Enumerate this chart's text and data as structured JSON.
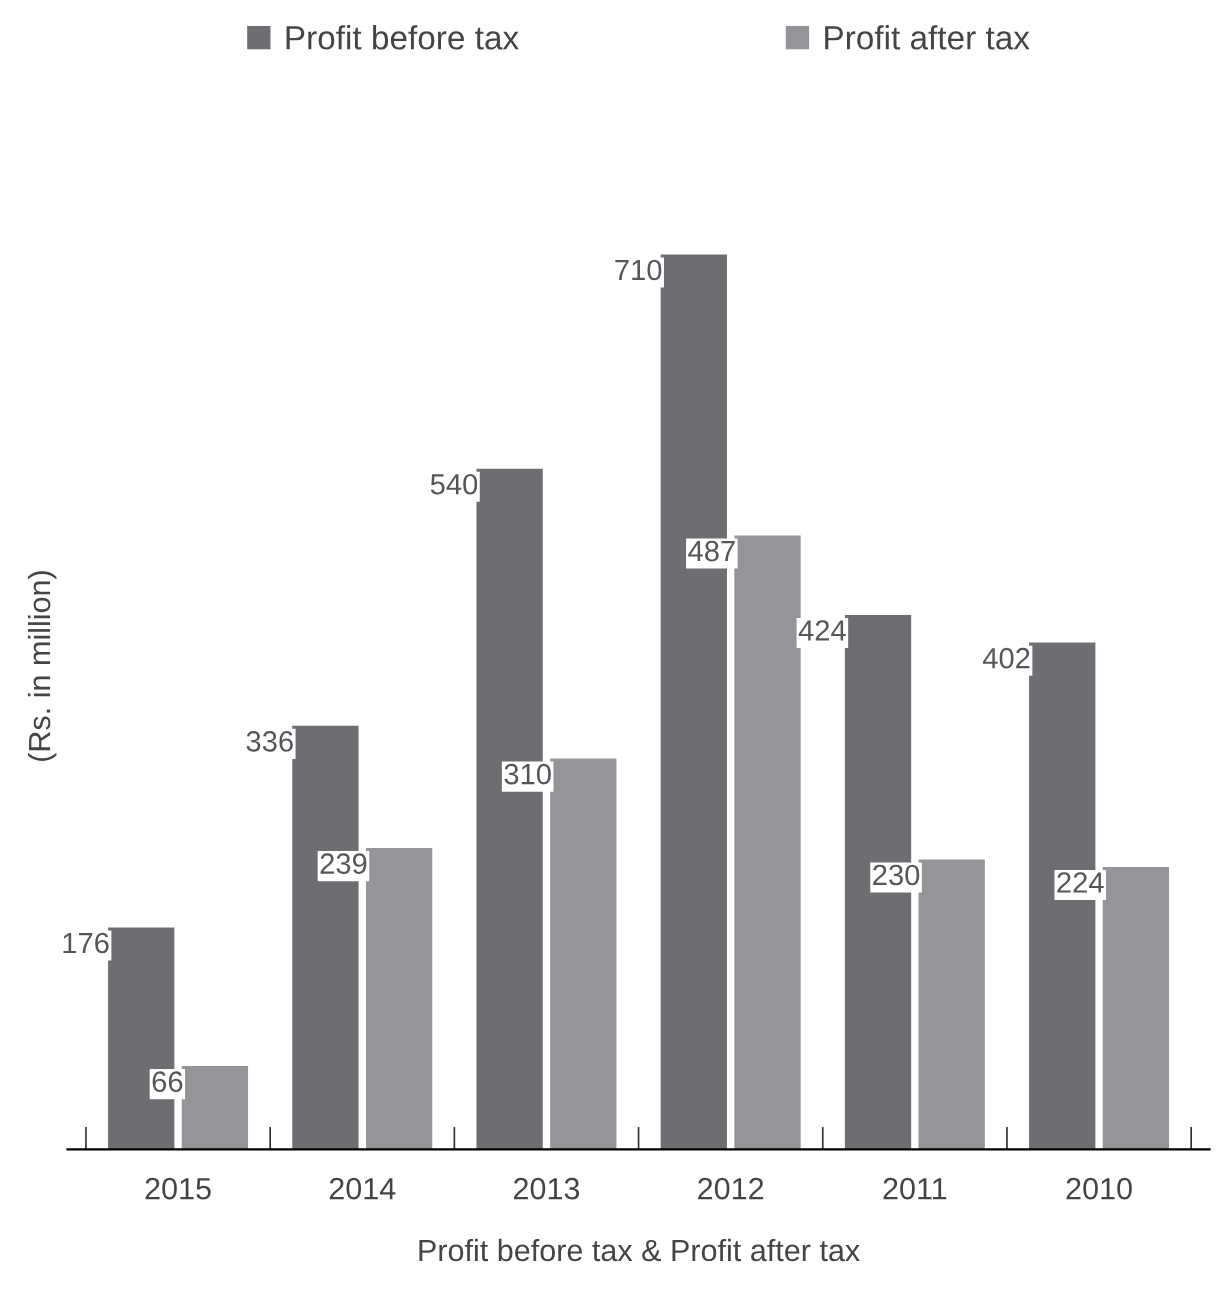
{
  "chart_data": {
    "type": "bar",
    "xlabel": "Profit before tax & Profit after tax",
    "ylabel": "(Rs. in million)",
    "categories": [
      "2015",
      "2014",
      "2013",
      "2012",
      "2011",
      "2010"
    ],
    "series": [
      {
        "name": "Profit before tax",
        "color": "#6d6e71",
        "values": [
          176,
          336,
          540,
          710,
          424,
          402
        ]
      },
      {
        "name": "Profit after tax",
        "color": "#939598",
        "values": [
          66,
          239,
          310,
          487,
          230,
          224
        ]
      }
    ],
    "data_labels": true,
    "legend": "top",
    "grid": false
  }
}
